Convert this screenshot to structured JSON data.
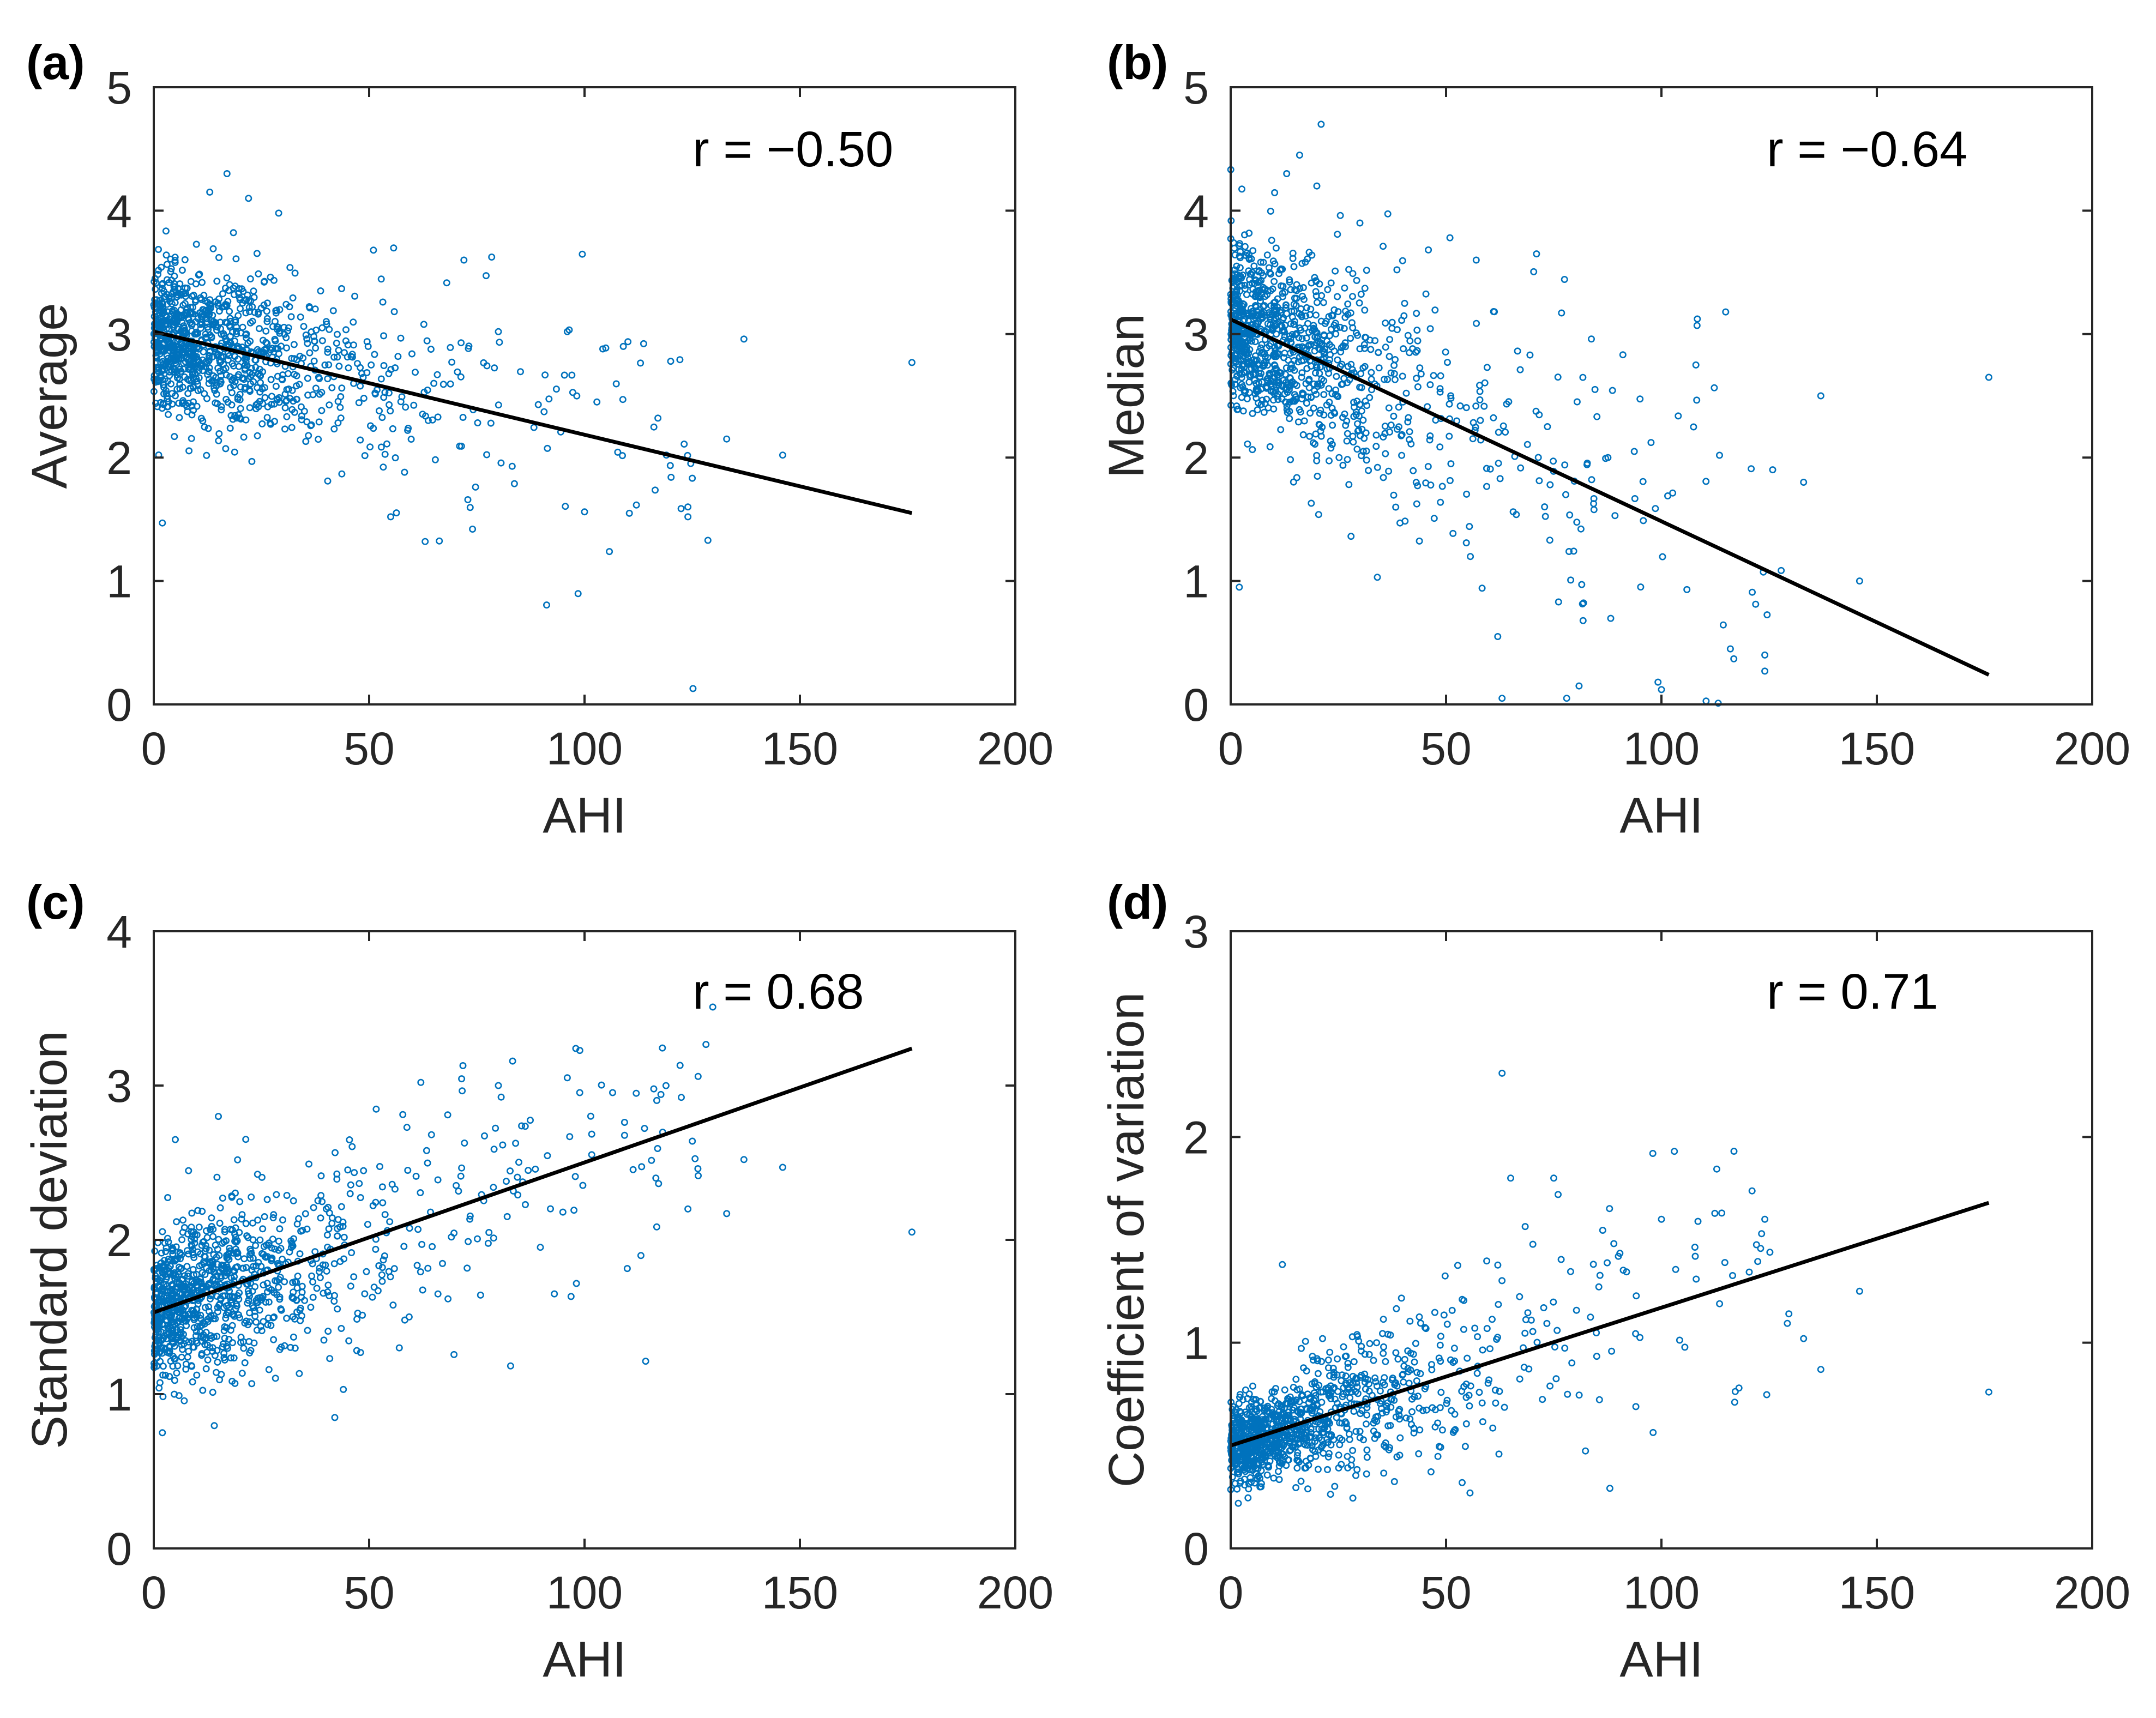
{
  "style": {
    "point_color": "#0072BD",
    "fit_line_color": "#000000",
    "axis_color": "#262626"
  },
  "chart_data": [
    {
      "type": "scatter",
      "panel_label": "(a)",
      "xlabel": "AHI",
      "ylabel": "Average",
      "annotation": "r = −0.50",
      "xlim": [
        0,
        200
      ],
      "ylim": [
        0,
        5
      ],
      "xticks": [
        0,
        50,
        100,
        150,
        200
      ],
      "yticks": [
        0,
        1,
        2,
        3,
        4,
        5
      ],
      "point_count": 1100,
      "x_range": [
        0,
        176
      ],
      "fit_line": {
        "x": [
          0,
          176
        ],
        "y": [
          3.02,
          1.55
        ]
      },
      "outliers": [
        {
          "x": 17,
          "y": 4.3
        },
        {
          "x": 13,
          "y": 4.15
        },
        {
          "x": 22,
          "y": 4.1
        },
        {
          "x": 29,
          "y": 3.98
        },
        {
          "x": 72,
          "y": 3.6
        },
        {
          "x": 51,
          "y": 3.68
        },
        {
          "x": 80,
          "y": 3.02
        },
        {
          "x": 96,
          "y": 3.02
        },
        {
          "x": 137,
          "y": 2.96
        },
        {
          "x": 109,
          "y": 2.9
        },
        {
          "x": 120,
          "y": 2.78
        },
        {
          "x": 176,
          "y": 2.77
        },
        {
          "x": 133,
          "y": 2.15
        },
        {
          "x": 146,
          "y": 2.02
        },
        {
          "x": 124,
          "y": 1.6
        },
        {
          "x": 124,
          "y": 1.52
        },
        {
          "x": 100,
          "y": 1.56
        },
        {
          "x": 55,
          "y": 1.52
        },
        {
          "x": 63,
          "y": 1.32
        },
        {
          "x": 74,
          "y": 1.42
        },
        {
          "x": 2,
          "y": 1.47
        },
        {
          "x": 119,
          "y": 2.02
        }
      ]
    },
    {
      "type": "scatter",
      "panel_label": "(b)",
      "xlabel": "AHI",
      "ylabel": "Median",
      "annotation": "r = −0.64",
      "xlim": [
        0,
        200
      ],
      "ylim": [
        0,
        5
      ],
      "xticks": [
        0,
        50,
        100,
        150,
        200
      ],
      "yticks": [
        0,
        1,
        2,
        3,
        4,
        5
      ],
      "point_count": 1100,
      "x_range": [
        0,
        176
      ],
      "fit_line": {
        "x": [
          0,
          176
        ],
        "y": [
          3.12,
          0.24
        ]
      },
      "outliers": [
        {
          "x": 21,
          "y": 4.7
        },
        {
          "x": 16,
          "y": 4.45
        },
        {
          "x": 13,
          "y": 4.3
        },
        {
          "x": 20,
          "y": 4.2
        },
        {
          "x": 30,
          "y": 3.9
        },
        {
          "x": 71,
          "y": 3.65
        },
        {
          "x": 57,
          "y": 3.6
        },
        {
          "x": 176,
          "y": 2.65
        },
        {
          "x": 137,
          "y": 2.5
        },
        {
          "x": 133,
          "y": 1.8
        },
        {
          "x": 146,
          "y": 1.0
        },
        {
          "x": 124,
          "y": 0.4
        },
        {
          "x": 124,
          "y": 0.27
        },
        {
          "x": 63,
          "y": 0.05
        },
        {
          "x": 78,
          "y": 0.05
        },
        {
          "x": 100,
          "y": 0.12
        },
        {
          "x": 2,
          "y": 0.95
        },
        {
          "x": 108,
          "y": 2.75
        },
        {
          "x": 116,
          "y": 0.45
        },
        {
          "x": 62,
          "y": 0.55
        }
      ]
    },
    {
      "type": "scatter",
      "panel_label": "(c)",
      "xlabel": "AHI",
      "ylabel": "Standard deviation",
      "annotation": "r = 0.68",
      "xlim": [
        0,
        200
      ],
      "ylim": [
        0,
        4
      ],
      "xticks": [
        0,
        50,
        100,
        150,
        200
      ],
      "yticks": [
        0,
        1,
        2,
        3,
        4
      ],
      "point_count": 1100,
      "x_range": [
        0,
        176
      ],
      "fit_line": {
        "x": [
          0,
          176
        ],
        "y": [
          1.53,
          3.24
        ]
      },
      "outliers": [
        {
          "x": 62,
          "y": 3.02
        },
        {
          "x": 80,
          "y": 3.0
        },
        {
          "x": 96,
          "y": 3.05
        },
        {
          "x": 112,
          "y": 2.95
        },
        {
          "x": 137,
          "y": 2.52
        },
        {
          "x": 146,
          "y": 2.47
        },
        {
          "x": 124,
          "y": 2.2
        },
        {
          "x": 133,
          "y": 2.17
        },
        {
          "x": 176,
          "y": 2.05
        },
        {
          "x": 48,
          "y": 1.27
        },
        {
          "x": 57,
          "y": 1.3
        },
        {
          "x": 93,
          "y": 1.65
        },
        {
          "x": 2,
          "y": 0.75
        },
        {
          "x": 5,
          "y": 2.65
        },
        {
          "x": 15,
          "y": 2.8
        }
      ]
    },
    {
      "type": "scatter",
      "panel_label": "(d)",
      "xlabel": "AHI",
      "ylabel": "Coefficient of variation",
      "annotation": "r = 0.71",
      "xlim": [
        0,
        200
      ],
      "ylim": [
        0,
        3
      ],
      "xticks": [
        0,
        50,
        100,
        150,
        200
      ],
      "yticks": [
        0,
        1,
        2,
        3
      ],
      "point_count": 1100,
      "x_range": [
        0,
        176
      ],
      "fit_line": {
        "x": [
          0,
          176
        ],
        "y": [
          0.5,
          1.68
        ]
      },
      "outliers": [
        {
          "x": 63,
          "y": 2.31
        },
        {
          "x": 98,
          "y": 1.92
        },
        {
          "x": 103,
          "y": 1.93
        },
        {
          "x": 65,
          "y": 1.8
        },
        {
          "x": 75,
          "y": 1.8
        },
        {
          "x": 114,
          "y": 1.63
        },
        {
          "x": 124,
          "y": 1.6
        },
        {
          "x": 146,
          "y": 1.25
        },
        {
          "x": 176,
          "y": 0.76
        },
        {
          "x": 133,
          "y": 1.02
        },
        {
          "x": 137,
          "y": 0.87
        },
        {
          "x": 118,
          "y": 0.78
        },
        {
          "x": 12,
          "y": 1.38
        },
        {
          "x": 100,
          "y": 1.6
        },
        {
          "x": 90,
          "y": 1.42
        }
      ]
    }
  ]
}
